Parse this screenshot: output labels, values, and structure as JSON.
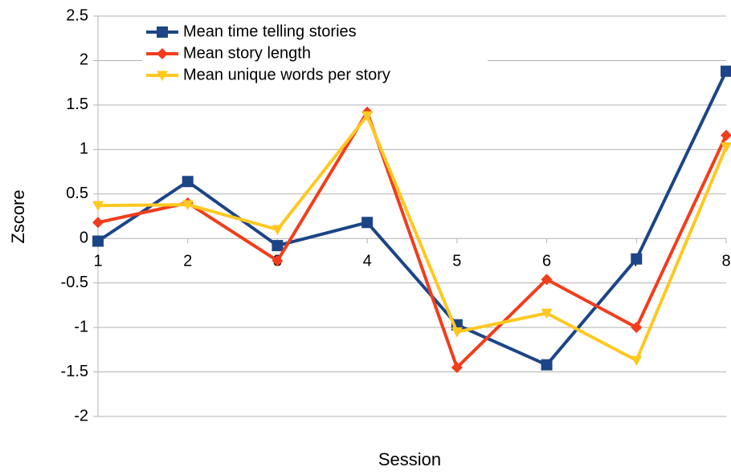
{
  "chart_data": {
    "type": "line",
    "x_label": "Session",
    "y_label": "Zscore",
    "x": [
      1,
      2,
      3,
      4,
      5,
      6,
      7,
      8
    ],
    "xlim": [
      1,
      8
    ],
    "xticks": [
      1,
      2,
      3,
      4,
      5,
      6,
      7,
      8
    ],
    "ylim": [
      -2,
      2.5
    ],
    "yticks": [
      -2,
      -1.5,
      -1,
      -0.5,
      0,
      0.5,
      1,
      1.5,
      2,
      2.5
    ],
    "grid": true,
    "legend": "top-left",
    "series": [
      {
        "name": "Mean time telling stories",
        "color": "#1c4587",
        "marker": "square",
        "values": [
          -0.03,
          0.64,
          -0.08,
          0.18,
          -0.97,
          -1.42,
          -0.23,
          1.88
        ]
      },
      {
        "name": "Mean story length",
        "color": "#f23d1c",
        "marker": "diamond",
        "values": [
          0.18,
          0.4,
          -0.25,
          1.42,
          -1.45,
          -0.46,
          -1.0,
          1.16
        ]
      },
      {
        "name": "Mean unique words per story",
        "color": "#ffc820",
        "marker": "triangle-down",
        "values": [
          0.37,
          0.38,
          0.1,
          1.38,
          -1.05,
          -0.84,
          -1.37,
          1.03
        ]
      }
    ]
  }
}
